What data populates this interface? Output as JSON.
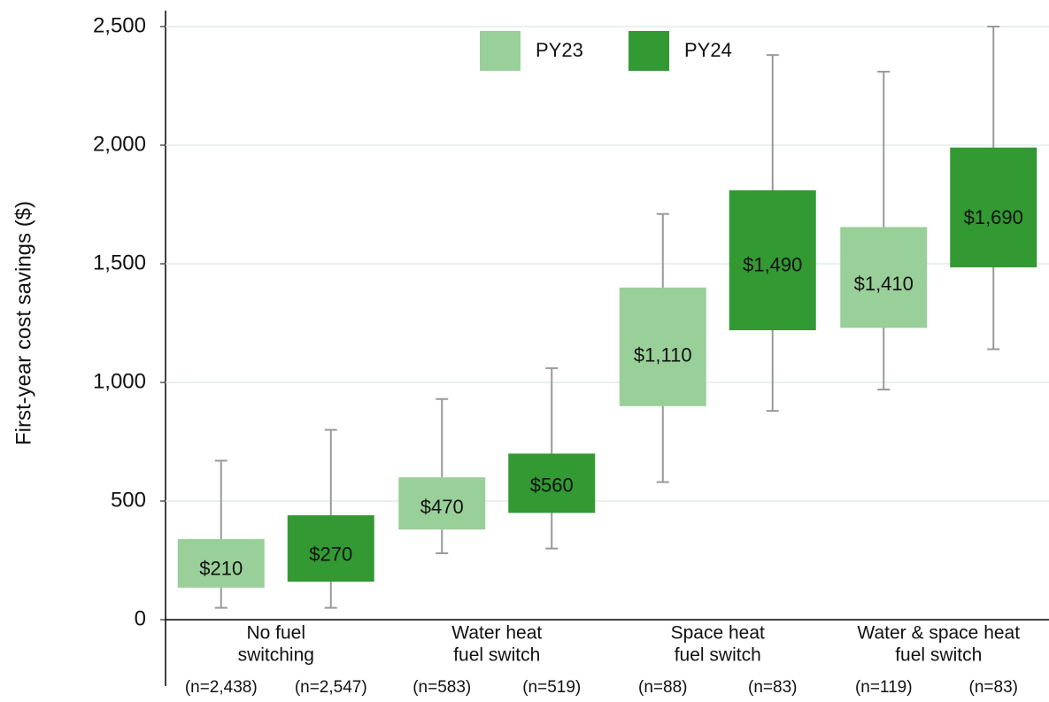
{
  "chart_data": {
    "type": "box",
    "y_label": "First-year cost savings ($)",
    "categories": [
      [
        "No fuel",
        "switching"
      ],
      [
        "Water heat",
        "fuel switch"
      ],
      [
        "Space heat",
        "fuel switch"
      ],
      [
        "Water & space heat",
        "fuel switch"
      ]
    ],
    "series": [
      {
        "name": "PY23",
        "color": "#99cf99",
        "low": [
          50,
          280,
          580,
          970
        ],
        "q1": [
          135,
          380,
          900,
          1230
        ],
        "median": [
          210,
          470,
          1110,
          1410
        ],
        "q3": [
          340,
          600,
          1400,
          1655
        ],
        "high": [
          670,
          930,
          1710,
          2310
        ],
        "median_labels": [
          "$210",
          "$470",
          "$1,110",
          "$1,410"
        ],
        "n_labels": [
          "(n=2,438)",
          "(n=583)",
          "(n=88)",
          "(n=119)"
        ]
      },
      {
        "name": "PY24",
        "color": "#339933",
        "low": [
          50,
          300,
          880,
          1140
        ],
        "q1": [
          160,
          450,
          1220,
          1485
        ],
        "median": [
          270,
          560,
          1490,
          1690
        ],
        "q3": [
          440,
          700,
          1810,
          1990
        ],
        "high": [
          800,
          1060,
          2380,
          2500
        ],
        "median_labels": [
          "$270",
          "$560",
          "$1,490",
          "$1,690"
        ],
        "n_labels": [
          "(n=2,547)",
          "(n=519)",
          "(n=83)",
          "(n=83)"
        ]
      }
    ],
    "ylim": [
      0,
      2500
    ],
    "yticks": [
      0,
      500,
      {
        "value": 1000,
        "label": "1,000"
      },
      {
        "value": 1500,
        "label": "1,500"
      },
      {
        "value": 2000,
        "label": "2,000"
      },
      {
        "value": 2500,
        "label": "2,500"
      }
    ],
    "grid": true,
    "legend": "top"
  }
}
